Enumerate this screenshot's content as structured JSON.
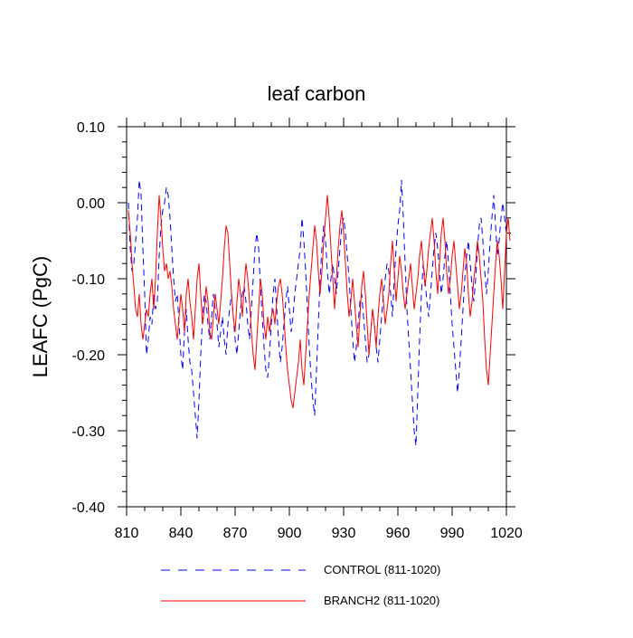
{
  "chart_data": {
    "type": "line",
    "title": "leaf carbon",
    "xlabel": "",
    "ylabel": "LEAFC  (PgC)",
    "xlim": [
      810,
      1020
    ],
    "ylim": [
      -0.4,
      0.1
    ],
    "x_ticks": [
      810,
      840,
      870,
      900,
      930,
      960,
      990,
      1020
    ],
    "x_tick_labels": [
      "810",
      "840",
      "870",
      "900",
      "930",
      "960",
      "990",
      "1020"
    ],
    "y_ticks": [
      0.1,
      0.0,
      -0.1,
      -0.2,
      -0.3,
      -0.4
    ],
    "y_tick_labels": [
      "0.10",
      "0.00",
      "-0.10",
      "-0.20",
      "-0.30",
      "-0.40"
    ],
    "x_start": 811,
    "legend_position": "bottom",
    "series": [
      {
        "name": "CONTROL (811-1020)",
        "color": "#0000ff",
        "style": "dashed",
        "values": [
          0.0,
          -0.06,
          -0.09,
          -0.08,
          -0.05,
          -0.02,
          0.03,
          0.01,
          -0.06,
          -0.12,
          -0.2,
          -0.18,
          -0.15,
          -0.16,
          -0.12,
          -0.14,
          -0.13,
          -0.07,
          -0.03,
          -0.01,
          0.0,
          0.02,
          0.01,
          -0.02,
          -0.06,
          -0.1,
          -0.13,
          -0.12,
          -0.16,
          -0.2,
          -0.22,
          -0.17,
          -0.14,
          -0.18,
          -0.21,
          -0.22,
          -0.25,
          -0.28,
          -0.31,
          -0.26,
          -0.2,
          -0.15,
          -0.12,
          -0.13,
          -0.16,
          -0.18,
          -0.15,
          -0.12,
          -0.14,
          -0.16,
          -0.19,
          -0.17,
          -0.15,
          -0.18,
          -0.2,
          -0.16,
          -0.14,
          -0.12,
          -0.15,
          -0.18,
          -0.2,
          -0.17,
          -0.14,
          -0.12,
          -0.11,
          -0.13,
          -0.16,
          -0.18,
          -0.14,
          -0.1,
          -0.06,
          -0.04,
          -0.06,
          -0.11,
          -0.15,
          -0.19,
          -0.22,
          -0.23,
          -0.2,
          -0.16,
          -0.12,
          -0.1,
          -0.14,
          -0.18,
          -0.21,
          -0.19,
          -0.16,
          -0.13,
          -0.11,
          -0.14,
          -0.17,
          -0.15,
          -0.12,
          -0.1,
          -0.08,
          -0.06,
          -0.02,
          -0.05,
          -0.09,
          -0.14,
          -0.19,
          -0.23,
          -0.26,
          -0.28,
          -0.22,
          -0.16,
          -0.1,
          -0.06,
          -0.03,
          -0.05,
          -0.09,
          -0.12,
          -0.1,
          -0.08,
          -0.1,
          -0.12,
          -0.09,
          -0.06,
          -0.03,
          -0.02,
          -0.04,
          -0.07,
          -0.1,
          -0.14,
          -0.18,
          -0.21,
          -0.19,
          -0.16,
          -0.13,
          -0.12,
          -0.15,
          -0.18,
          -0.21,
          -0.2,
          -0.17,
          -0.14,
          -0.16,
          -0.19,
          -0.21,
          -0.18,
          -0.15,
          -0.12,
          -0.1,
          -0.08,
          -0.09,
          -0.12,
          -0.15,
          -0.1,
          -0.06,
          -0.03,
          -0.01,
          0.03,
          -0.02,
          -0.08,
          -0.14,
          -0.18,
          -0.22,
          -0.26,
          -0.3,
          -0.32,
          -0.25,
          -0.18,
          -0.12,
          -0.08,
          -0.1,
          -0.13,
          -0.15,
          -0.12,
          -0.09,
          -0.06,
          -0.04,
          -0.06,
          -0.09,
          -0.12,
          -0.1,
          -0.07,
          -0.05,
          -0.08,
          -0.12,
          -0.16,
          -0.19,
          -0.22,
          -0.25,
          -0.22,
          -0.18,
          -0.14,
          -0.1,
          -0.07,
          -0.05,
          -0.08,
          -0.11,
          -0.13,
          -0.1,
          -0.06,
          -0.03,
          -0.02,
          -0.05,
          -0.09,
          -0.12,
          -0.09,
          -0.05,
          -0.02,
          0.01,
          -0.03,
          -0.07,
          -0.05,
          -0.02,
          0.0,
          -0.02,
          -0.04
        ]
      },
      {
        "name": "BRANCH2 (811-1020)",
        "color": "#ff0000",
        "style": "solid",
        "values": [
          -0.01,
          -0.04,
          -0.08,
          -0.11,
          -0.14,
          -0.15,
          -0.12,
          -0.16,
          -0.18,
          -0.16,
          -0.14,
          -0.15,
          -0.12,
          -0.1,
          -0.14,
          -0.1,
          -0.04,
          0.01,
          -0.02,
          -0.06,
          -0.09,
          -0.08,
          -0.1,
          -0.09,
          -0.11,
          -0.14,
          -0.16,
          -0.18,
          -0.15,
          -0.12,
          -0.14,
          -0.17,
          -0.12,
          -0.1,
          -0.13,
          -0.15,
          -0.18,
          -0.14,
          -0.1,
          -0.08,
          -0.12,
          -0.16,
          -0.14,
          -0.11,
          -0.13,
          -0.17,
          -0.18,
          -0.15,
          -0.12,
          -0.14,
          -0.16,
          -0.13,
          -0.1,
          -0.06,
          -0.03,
          -0.04,
          -0.08,
          -0.12,
          -0.15,
          -0.17,
          -0.13,
          -0.1,
          -0.12,
          -0.15,
          -0.11,
          -0.08,
          -0.1,
          -0.13,
          -0.17,
          -0.2,
          -0.22,
          -0.18,
          -0.14,
          -0.1,
          -0.12,
          -0.16,
          -0.18,
          -0.15,
          -0.17,
          -0.15,
          -0.14,
          -0.16,
          -0.13,
          -0.11,
          -0.1,
          -0.12,
          -0.15,
          -0.19,
          -0.22,
          -0.24,
          -0.26,
          -0.27,
          -0.25,
          -0.23,
          -0.21,
          -0.18,
          -0.22,
          -0.24,
          -0.2,
          -0.16,
          -0.12,
          -0.09,
          -0.06,
          -0.03,
          -0.05,
          -0.09,
          -0.12,
          -0.09,
          -0.05,
          -0.02,
          0.01,
          -0.02,
          -0.06,
          -0.1,
          -0.14,
          -0.1,
          -0.06,
          -0.03,
          -0.01,
          -0.04,
          -0.08,
          -0.12,
          -0.15,
          -0.13,
          -0.1,
          -0.13,
          -0.16,
          -0.19,
          -0.15,
          -0.11,
          -0.09,
          -0.12,
          -0.16,
          -0.2,
          -0.17,
          -0.14,
          -0.16,
          -0.19,
          -0.15,
          -0.12,
          -0.1,
          -0.13,
          -0.16,
          -0.14,
          -0.12,
          -0.08,
          -0.05,
          -0.09,
          -0.13,
          -0.1,
          -0.07,
          -0.09,
          -0.12,
          -0.14,
          -0.12,
          -0.1,
          -0.08,
          -0.11,
          -0.14,
          -0.12,
          -0.1,
          -0.07,
          -0.05,
          -0.08,
          -0.11,
          -0.09,
          -0.06,
          -0.04,
          -0.02,
          -0.05,
          -0.09,
          -0.12,
          -0.08,
          -0.04,
          -0.02,
          -0.05,
          -0.09,
          -0.12,
          -0.1,
          -0.07,
          -0.05,
          -0.08,
          -0.11,
          -0.14,
          -0.12,
          -0.09,
          -0.06,
          -0.08,
          -0.12,
          -0.15,
          -0.13,
          -0.1,
          -0.08,
          -0.05,
          -0.07,
          -0.1,
          -0.13,
          -0.18,
          -0.22,
          -0.24,
          -0.2,
          -0.16,
          -0.12,
          -0.08,
          -0.05,
          -0.07,
          -0.1,
          -0.14,
          -0.09,
          -0.04,
          -0.02,
          -0.05
        ]
      }
    ]
  }
}
